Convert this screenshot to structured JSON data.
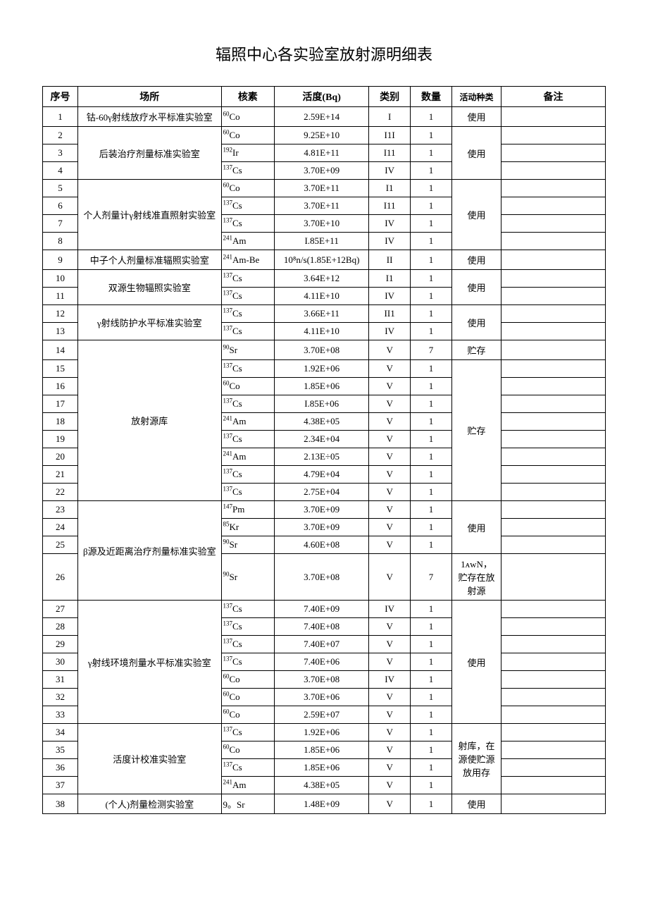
{
  "title": "辐照中心各实验室放射源明细表",
  "headers": {
    "seq": "序号",
    "place": "场所",
    "nuclide": "核素",
    "activity": "活度(Bq)",
    "category": "类别",
    "quantity": "数量",
    "usage": "活动种类",
    "remark": "备注"
  },
  "rows": [
    {
      "seq": "1",
      "place": "钴-60γ射线放疗水平标准实验室",
      "place_span": 1,
      "nuc_sup": "60",
      "nuc_sym": "Co",
      "activity": "2.59E+14",
      "category": "I",
      "quantity": "1",
      "usage": "使用",
      "usage_span": 1,
      "remark": ""
    },
    {
      "seq": "2",
      "place": "后装治疗剂量标准实验室",
      "place_span": 3,
      "nuc_sup": "60",
      "nuc_sym": "Co",
      "activity": "9.25E+10",
      "category": "I1I",
      "quantity": "1",
      "usage": "使用",
      "usage_span": 3,
      "remark": ""
    },
    {
      "seq": "3",
      "nuc_sup": "192",
      "nuc_sym": "Ir",
      "activity": "4.81E+11",
      "category": "I11",
      "quantity": "1",
      "remark": ""
    },
    {
      "seq": "4",
      "nuc_sup": "137",
      "nuc_sym": "Cs",
      "activity": "3.70E+09",
      "category": "IV",
      "quantity": "1",
      "remark": ""
    },
    {
      "seq": "5",
      "place": "个人剂量计γ射线准直照射实验室",
      "place_span": 4,
      "nuc_sup": "60",
      "nuc_sym": "Co",
      "activity": "3.70E+11",
      "category": "I1",
      "quantity": "1",
      "usage": "使用",
      "usage_span": 4,
      "remark": ""
    },
    {
      "seq": "6",
      "nuc_sup": "137",
      "nuc_sym": "Cs",
      "activity": "3.70E+11",
      "category": "I11",
      "quantity": "1",
      "remark": ""
    },
    {
      "seq": "7",
      "nuc_sup": "137",
      "nuc_sym": "Cs",
      "activity": "3.70E+10",
      "category": "IV",
      "quantity": "1",
      "remark": ""
    },
    {
      "seq": "8",
      "nuc_sup": "241",
      "nuc_sym": "Am",
      "activity": "I.85E+11",
      "category": "IV",
      "quantity": "1",
      "remark": ""
    },
    {
      "seq": "9",
      "place": "中子个人剂量标准辐照实验室",
      "place_span": 1,
      "nuc_sup": "241",
      "nuc_sym": "Am-Be",
      "activity": "10⁸n/s(1.85E+12Bq)",
      "category": "II",
      "quantity": "1",
      "usage": "使用",
      "usage_span": 1,
      "remark": ""
    },
    {
      "seq": "10",
      "place": "双源生物辐照实验室",
      "place_span": 2,
      "nuc_sup": "137",
      "nuc_sym": "Cs",
      "activity": "3.64E+12",
      "category": "I1",
      "quantity": "1",
      "usage": "使用",
      "usage_span": 2,
      "remark": ""
    },
    {
      "seq": "11",
      "nuc_sup": "137",
      "nuc_sym": "Cs",
      "activity": "4.11E+10",
      "category": "IV",
      "quantity": "1",
      "remark": ""
    },
    {
      "seq": "12",
      "place": "γ射线防护水平标准实验室",
      "place_span": 2,
      "nuc_sup": "137",
      "nuc_sym": "Cs",
      "activity": "3.66E+11",
      "category": "II1",
      "quantity": "1",
      "usage": "使用",
      "usage_span": 2,
      "remark": ""
    },
    {
      "seq": "13",
      "nuc_sup": "137",
      "nuc_sym": "Cs",
      "activity": "4.11E+10",
      "category": "IV",
      "quantity": "1",
      "remark": ""
    },
    {
      "seq": "14",
      "place": "放射源库",
      "place_span": 9,
      "nuc_sup": "90",
      "nuc_sym": "Sr",
      "activity": "3.70E+08",
      "category": "V",
      "quantity": "7",
      "usage": "贮存",
      "usage_span": 1,
      "remark": ""
    },
    {
      "seq": "15",
      "nuc_sup": "137",
      "nuc_sym": "Cs",
      "activity": "1.92E+06",
      "category": "V",
      "quantity": "1",
      "usage": "贮存",
      "usage_span": 8,
      "remark": ""
    },
    {
      "seq": "16",
      "nuc_sup": "60",
      "nuc_sym": "Co",
      "activity": "1.85E+06",
      "category": "V",
      "quantity": "1",
      "remark": ""
    },
    {
      "seq": "17",
      "nuc_sup": "137",
      "nuc_sym": "Cs",
      "activity": "I.85E+06",
      "category": "V",
      "quantity": "1",
      "remark": ""
    },
    {
      "seq": "18",
      "nuc_sup": "241",
      "nuc_sym": "Am",
      "activity": "4.38E+05",
      "category": "V",
      "quantity": "1",
      "remark": ""
    },
    {
      "seq": "19",
      "nuc_sup": "137",
      "nuc_sym": "Cs",
      "activity": "2.34E+04",
      "category": "V",
      "quantity": "1",
      "remark": ""
    },
    {
      "seq": "20",
      "nuc_sup": "241",
      "nuc_sym": "Am",
      "activity": "2.13E÷05",
      "category": "V",
      "quantity": "1",
      "remark": ""
    },
    {
      "seq": "21",
      "nuc_sup": "137",
      "nuc_sym": "Cs",
      "activity": "4.79E+04",
      "category": "V",
      "quantity": "1",
      "remark": ""
    },
    {
      "seq": "22",
      "nuc_sup": "137",
      "nuc_sym": "Cs",
      "activity": "2.75E+04",
      "category": "V",
      "quantity": "1",
      "remark": ""
    },
    {
      "seq": "23",
      "place": "β源及近距离治疗剂量标准实验室",
      "place_span": 4,
      "nuc_sup": "147",
      "nuc_sym": "Pm",
      "activity": "3.70E+09",
      "category": "V",
      "quantity": "1",
      "usage": "使用",
      "usage_span": 3,
      "remark": ""
    },
    {
      "seq": "24",
      "nuc_sup": "85",
      "nuc_sym": "Kr",
      "activity": "3.70E+09",
      "category": "V",
      "quantity": "1",
      "remark": ""
    },
    {
      "seq": "25",
      "nuc_sup": "90",
      "nuc_sym": "Sr",
      "activity": "4.60E+08",
      "category": "V",
      "quantity": "1",
      "remark": ""
    },
    {
      "seq": "26",
      "nuc_sup": "90",
      "nuc_sym": "Sr",
      "activity": "3.70E+08",
      "category": "V",
      "quantity": "7",
      "usage": "1ᴀᴡN，贮存在放射源",
      "usage_span": 1,
      "remark": ""
    },
    {
      "seq": "27",
      "place": "γ射线环境剂量水平标准实验室",
      "place_span": 7,
      "nuc_sup": "137",
      "nuc_sym": "Cs",
      "activity": "7.40E+09",
      "category": "IV",
      "quantity": "1",
      "usage": "使用",
      "usage_span": 7,
      "remark": ""
    },
    {
      "seq": "28",
      "nuc_sup": "137",
      "nuc_sym": "Cs",
      "activity": "7.40E+08",
      "category": "V",
      "quantity": "1",
      "remark": ""
    },
    {
      "seq": "29",
      "nuc_sup": "137",
      "nuc_sym": "Cs",
      "activity": "7.40E+07",
      "category": "V",
      "quantity": "1",
      "remark": ""
    },
    {
      "seq": "30",
      "nuc_sup": "137",
      "nuc_sym": "Cs",
      "activity": "7.40E+06",
      "category": "V",
      "quantity": "1",
      "remark": ""
    },
    {
      "seq": "31",
      "nuc_sup": "60",
      "nuc_sym": "Co",
      "activity": "3.70E+08",
      "category": "IV",
      "quantity": "1",
      "remark": ""
    },
    {
      "seq": "32",
      "nuc_sup": "60",
      "nuc_sym": "Co",
      "activity": "3.70E+06",
      "category": "V",
      "quantity": "1",
      "remark": ""
    },
    {
      "seq": "33",
      "nuc_sup": "60",
      "nuc_sym": "Co",
      "activity": "2.59E+07",
      "category": "V",
      "quantity": "1",
      "remark": ""
    },
    {
      "seq": "34",
      "place": "活度计校准实验室",
      "place_span": 4,
      "nuc_sup": "137",
      "nuc_sym": "Cs",
      "activity": "1.92E+06",
      "category": "V",
      "quantity": "1",
      "usage": "射库，在源使贮源放用存",
      "usage_span": 4,
      "remark": ""
    },
    {
      "seq": "35",
      "nuc_sup": "60",
      "nuc_sym": "Co",
      "activity": "1.85E+06",
      "category": "V",
      "quantity": "1",
      "remark": ""
    },
    {
      "seq": "36",
      "nuc_sup": "137",
      "nuc_sym": "Cs",
      "activity": "1.85E+06",
      "category": "V",
      "quantity": "1",
      "remark": ""
    },
    {
      "seq": "37",
      "nuc_sup": "241",
      "nuc_sym": "Am",
      "activity": "4.38E+05",
      "category": "V",
      "quantity": "1",
      "remark": ""
    },
    {
      "seq": "38",
      "place": "(个人)剂量检测实验室",
      "place_span": 1,
      "nuc_sup": "",
      "nuc_sym": "9。Sr",
      "activity": "1.48E+09",
      "category": "V",
      "quantity": "1",
      "usage": "使用",
      "usage_span": 1,
      "remark": ""
    }
  ]
}
